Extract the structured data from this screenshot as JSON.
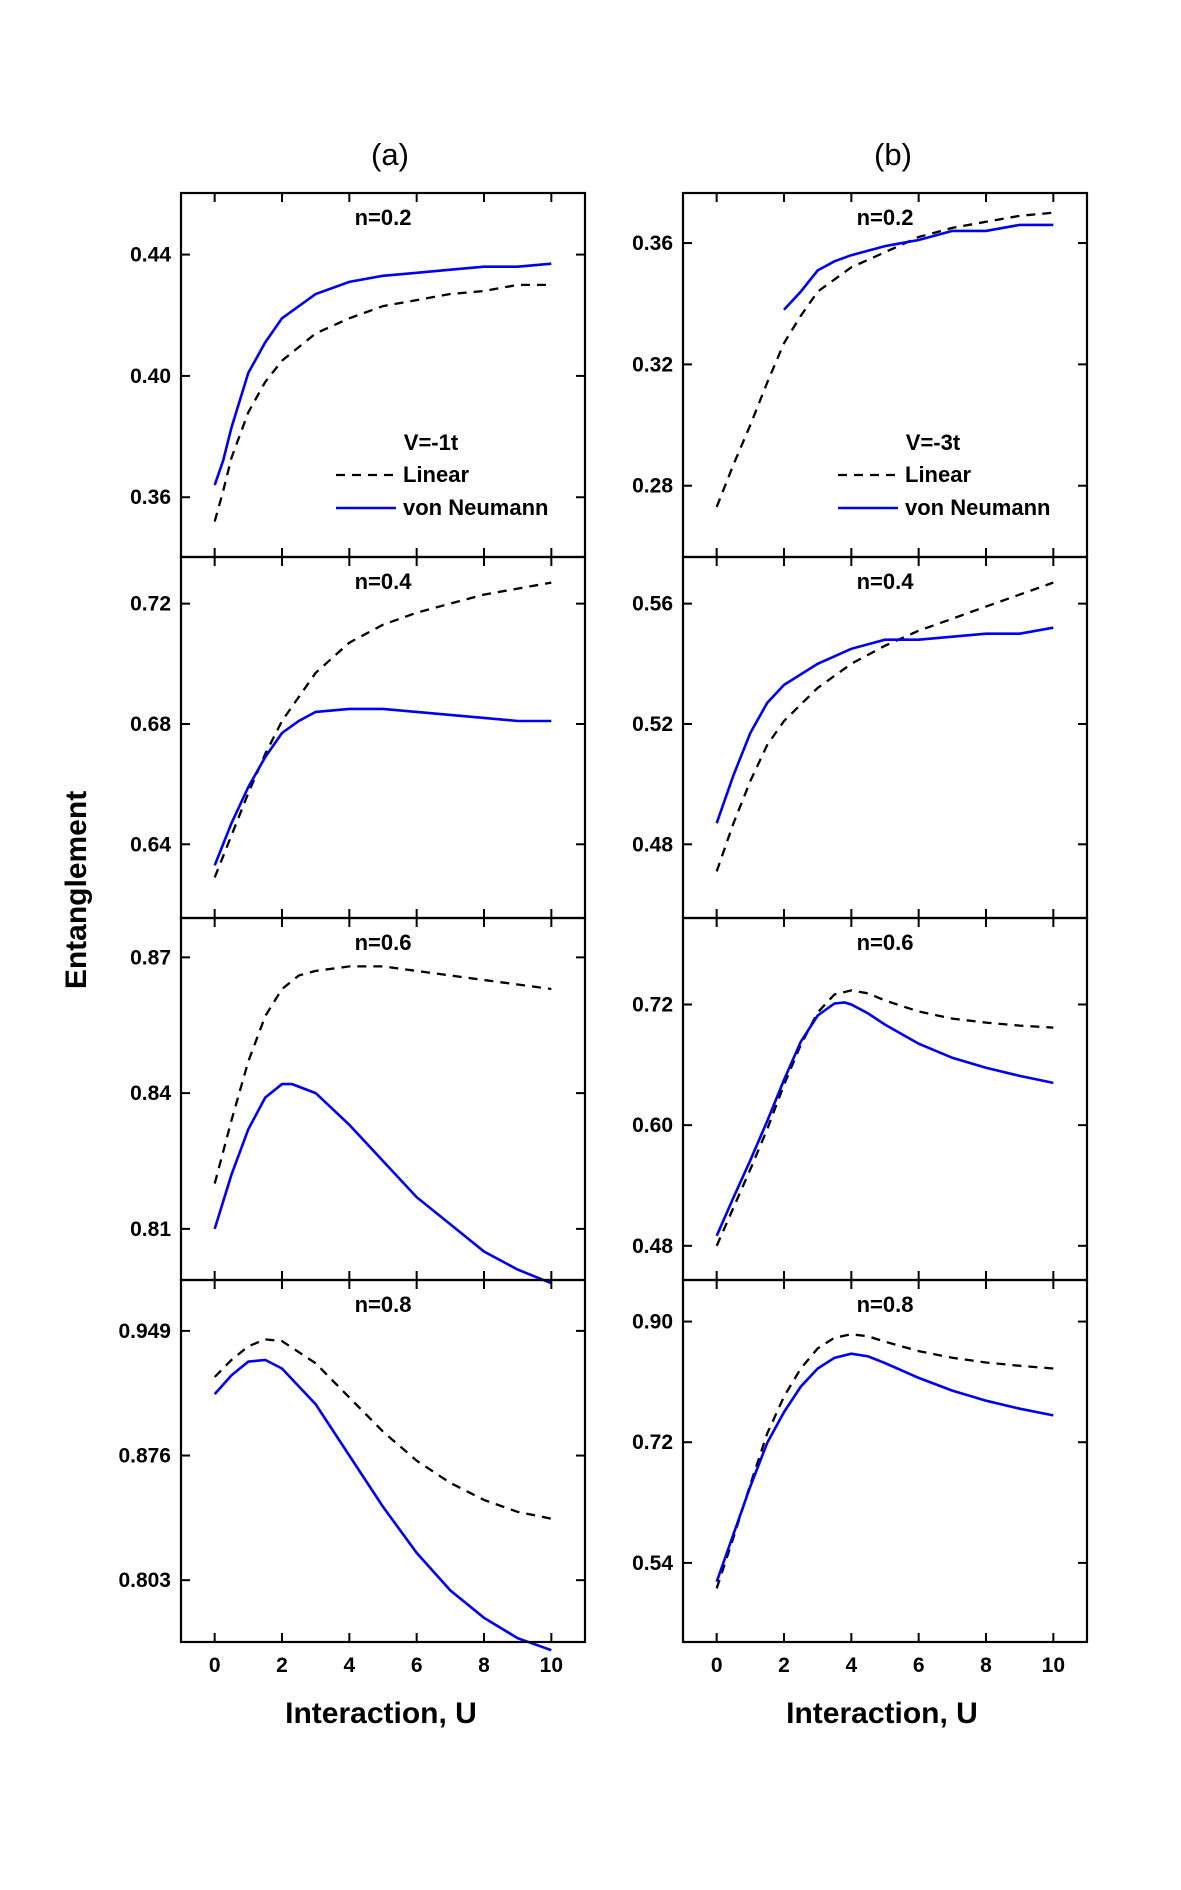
{
  "figure": {
    "panel_labels": [
      "(a)",
      "(b)"
    ],
    "ylabel": "Entanglement",
    "xlabel": "Interaction, U"
  },
  "chart_data": [
    {
      "type": "line",
      "panel": "(a)",
      "title": "n=0.2",
      "legend": {
        "title": "V=-1t",
        "entries": [
          "Linear",
          "von Neumann"
        ]
      },
      "xlim": [
        -1,
        11
      ],
      "xticks": [
        "0",
        "2",
        "4",
        "6",
        "8",
        "10"
      ],
      "ylim": [
        0.3403,
        0.4603
      ],
      "yticks": [
        "0.36",
        "0.40",
        "0.44"
      ],
      "series": [
        {
          "name": "Linear",
          "style": "dash",
          "color": "#000000",
          "x": [
            0,
            0.25,
            0.5,
            1,
            1.5,
            2,
            3,
            4,
            5,
            6,
            7,
            8,
            9,
            10
          ],
          "y": [
            0.352,
            0.362,
            0.373,
            0.388,
            0.398,
            0.405,
            0.414,
            0.419,
            0.423,
            0.425,
            0.427,
            0.428,
            0.43,
            0.43
          ]
        },
        {
          "name": "von Neumann",
          "style": "solid",
          "color": "#0000ee",
          "x": [
            0,
            0.25,
            0.5,
            1,
            1.5,
            2,
            3,
            4,
            5,
            6,
            7,
            8,
            9,
            10
          ],
          "y": [
            0.364,
            0.372,
            0.383,
            0.401,
            0.411,
            0.419,
            0.427,
            0.431,
            0.433,
            0.434,
            0.435,
            0.436,
            0.436,
            0.437
          ]
        }
      ]
    },
    {
      "type": "line",
      "panel": "(b)",
      "title": "n=0.2",
      "legend": {
        "title": "V=-3t",
        "entries": [
          "Linear",
          "von Neumann"
        ]
      },
      "xlim": [
        -1,
        11
      ],
      "xticks": [
        "0",
        "2",
        "4",
        "6",
        "8",
        "10"
      ],
      "ylim": [
        0.2565,
        0.3765
      ],
      "yticks": [
        "0.28",
        "0.32",
        "0.36"
      ],
      "series": [
        {
          "name": "Linear",
          "style": "dash",
          "color": "#000000",
          "x": [
            0,
            0.5,
            1,
            1.5,
            2,
            2.5,
            3,
            4,
            5,
            6,
            7,
            8,
            9,
            10
          ],
          "y": [
            0.273,
            0.287,
            0.3,
            0.314,
            0.327,
            0.336,
            0.344,
            0.352,
            0.357,
            0.362,
            0.365,
            0.367,
            0.369,
            0.37
          ]
        },
        {
          "name": "von Neumann",
          "style": "solid",
          "color": "#0000ee",
          "x": [
            2,
            2.5,
            3,
            3.5,
            4,
            5,
            6,
            7,
            8,
            9,
            9.5,
            10
          ],
          "y": [
            0.338,
            0.344,
            0.351,
            0.354,
            0.356,
            0.359,
            0.361,
            0.364,
            0.364,
            0.366,
            0.366,
            0.366
          ]
        }
      ]
    },
    {
      "type": "line",
      "panel": "(a)",
      "title": "n=0.4",
      "xlim": [
        -1,
        11
      ],
      "xticks": [
        "0",
        "2",
        "4",
        "6",
        "8",
        "10"
      ],
      "ylim": [
        0.6155,
        0.7355
      ],
      "yticks": [
        "0.64",
        "0.68",
        "0.72"
      ],
      "series": [
        {
          "name": "Linear",
          "style": "dash",
          "color": "#000000",
          "x": [
            0,
            0.5,
            1,
            1.5,
            2,
            3,
            4,
            5,
            6,
            7,
            8,
            9,
            10
          ],
          "y": [
            0.629,
            0.643,
            0.657,
            0.67,
            0.681,
            0.697,
            0.707,
            0.713,
            0.717,
            0.72,
            0.723,
            0.725,
            0.727
          ]
        },
        {
          "name": "von Neumann",
          "style": "solid",
          "color": "#0000ee",
          "x": [
            0,
            0.5,
            1,
            1.5,
            2,
            2.5,
            3,
            4,
            5,
            6,
            7,
            8,
            9,
            10
          ],
          "y": [
            0.633,
            0.647,
            0.659,
            0.669,
            0.677,
            0.681,
            0.684,
            0.685,
            0.685,
            0.684,
            0.683,
            0.682,
            0.681,
            0.681
          ]
        }
      ]
    },
    {
      "type": "line",
      "panel": "(b)",
      "title": "n=0.4",
      "xlim": [
        -1,
        11
      ],
      "xticks": [
        "0",
        "2",
        "4",
        "6",
        "8",
        "10"
      ],
      "ylim": [
        0.4555,
        0.5755
      ],
      "yticks": [
        "0.48",
        "0.52",
        "0.56"
      ],
      "series": [
        {
          "name": "Linear",
          "style": "dash",
          "color": "#000000",
          "x": [
            0,
            0.5,
            1,
            1.5,
            2,
            3,
            4,
            5,
            6,
            7,
            8,
            9,
            10
          ],
          "y": [
            0.471,
            0.487,
            0.501,
            0.513,
            0.521,
            0.532,
            0.54,
            0.546,
            0.551,
            0.555,
            0.559,
            0.563,
            0.567
          ]
        },
        {
          "name": "von Neumann",
          "style": "solid",
          "color": "#0000ee",
          "x": [
            0,
            0.5,
            1,
            1.5,
            2,
            3,
            4,
            5,
            6,
            7,
            8,
            9,
            10
          ],
          "y": [
            0.487,
            0.503,
            0.517,
            0.527,
            0.533,
            0.54,
            0.545,
            0.548,
            0.548,
            0.549,
            0.55,
            0.55,
            0.552
          ]
        }
      ]
    },
    {
      "type": "line",
      "panel": "(a)",
      "title": "n=0.6",
      "xlim": [
        -1,
        11
      ],
      "xticks": [
        "0",
        "2",
        "4",
        "6",
        "8",
        "10"
      ],
      "ylim": [
        0.7987,
        0.8787
      ],
      "yticks": [
        "0.81",
        "0.84",
        "0.87"
      ],
      "series": [
        {
          "name": "Linear",
          "style": "dash",
          "color": "#000000",
          "x": [
            0,
            0.5,
            1,
            1.5,
            2,
            2.5,
            3,
            4,
            5,
            6,
            7,
            8,
            9,
            10
          ],
          "y": [
            0.82,
            0.834,
            0.847,
            0.857,
            0.863,
            0.866,
            0.867,
            0.868,
            0.868,
            0.867,
            0.866,
            0.865,
            0.864,
            0.863
          ]
        },
        {
          "name": "von Neumann",
          "style": "solid",
          "color": "#0000ee",
          "x": [
            0,
            0.5,
            1,
            1.5,
            2,
            2.3,
            3,
            4,
            5,
            6,
            7,
            8,
            9,
            10
          ],
          "y": [
            0.81,
            0.822,
            0.832,
            0.839,
            0.842,
            0.842,
            0.84,
            0.833,
            0.825,
            0.817,
            0.811,
            0.805,
            0.801,
            0.798
          ]
        }
      ]
    },
    {
      "type": "line",
      "panel": "(b)",
      "title": "n=0.6",
      "xlim": [
        -1,
        11
      ],
      "xticks": [
        "0",
        "2",
        "4",
        "6",
        "8",
        "10"
      ],
      "ylim": [
        0.446,
        0.806
      ],
      "yticks": [
        "0.48",
        "0.60",
        "0.72"
      ],
      "series": [
        {
          "name": "Linear",
          "style": "dash",
          "color": "#000000",
          "x": [
            0,
            0.5,
            1,
            1.5,
            2,
            2.5,
            3,
            3.5,
            4,
            4.5,
            5,
            6,
            7,
            8,
            9,
            10
          ],
          "y": [
            0.48,
            0.518,
            0.556,
            0.596,
            0.64,
            0.68,
            0.712,
            0.73,
            0.734,
            0.731,
            0.724,
            0.713,
            0.706,
            0.702,
            0.699,
            0.697
          ]
        },
        {
          "name": "von Neumann",
          "style": "solid",
          "color": "#0000ee",
          "x": [
            0,
            0.5,
            1,
            1.5,
            2,
            2.5,
            3,
            3.5,
            3.8,
            4,
            4.5,
            5,
            6,
            7,
            8,
            9,
            10
          ],
          "y": [
            0.49,
            0.528,
            0.565,
            0.604,
            0.645,
            0.683,
            0.709,
            0.721,
            0.722,
            0.72,
            0.711,
            0.7,
            0.681,
            0.667,
            0.657,
            0.649,
            0.642
          ]
        }
      ]
    },
    {
      "type": "line",
      "panel": "(a)",
      "title": "n=0.8",
      "xlim": [
        -1,
        11
      ],
      "xticks": [
        "0",
        "2",
        "4",
        "6",
        "8",
        "10"
      ],
      "ylim": [
        0.7668,
        0.9788
      ],
      "yticks": [
        "0.803",
        "0.876",
        "0.949"
      ],
      "series": [
        {
          "name": "Linear",
          "style": "dash",
          "color": "#000000",
          "x": [
            0,
            0.5,
            1,
            1.5,
            2,
            3,
            4,
            5,
            6,
            7,
            8,
            9,
            10
          ],
          "y": [
            0.922,
            0.932,
            0.94,
            0.944,
            0.943,
            0.93,
            0.91,
            0.89,
            0.873,
            0.86,
            0.85,
            0.843,
            0.839
          ]
        },
        {
          "name": "von Neumann",
          "style": "solid",
          "color": "#0000ee",
          "x": [
            0,
            0.5,
            1,
            1.5,
            2,
            3,
            4,
            5,
            6,
            7,
            8,
            9,
            10
          ],
          "y": [
            0.912,
            0.923,
            0.931,
            0.932,
            0.927,
            0.906,
            0.876,
            0.846,
            0.819,
            0.797,
            0.781,
            0.769,
            0.762
          ]
        }
      ]
    },
    {
      "type": "line",
      "panel": "(b)",
      "title": "n=0.8",
      "xlim": [
        -1,
        11
      ],
      "xticks": [
        "0",
        "2",
        "4",
        "6",
        "8",
        "10"
      ],
      "ylim": [
        0.422,
        0.962
      ],
      "yticks": [
        "0.54",
        "0.72",
        "0.90"
      ],
      "series": [
        {
          "name": "Linear",
          "style": "dash",
          "color": "#000000",
          "x": [
            0,
            0.5,
            1,
            1.5,
            2,
            2.5,
            3,
            3.5,
            4,
            4.5,
            5,
            6,
            7,
            8,
            9,
            10
          ],
          "y": [
            0.502,
            0.578,
            0.657,
            0.733,
            0.788,
            0.83,
            0.86,
            0.876,
            0.881,
            0.878,
            0.87,
            0.856,
            0.846,
            0.839,
            0.834,
            0.83
          ]
        },
        {
          "name": "von Neumann",
          "style": "solid",
          "color": "#0000ee",
          "x": [
            0,
            0.5,
            1,
            1.5,
            2,
            2.5,
            3,
            3.5,
            4,
            4.5,
            5,
            6,
            7,
            8,
            9,
            10
          ],
          "y": [
            0.512,
            0.583,
            0.654,
            0.719,
            0.765,
            0.803,
            0.83,
            0.846,
            0.852,
            0.848,
            0.838,
            0.816,
            0.797,
            0.782,
            0.77,
            0.76
          ]
        }
      ]
    }
  ]
}
